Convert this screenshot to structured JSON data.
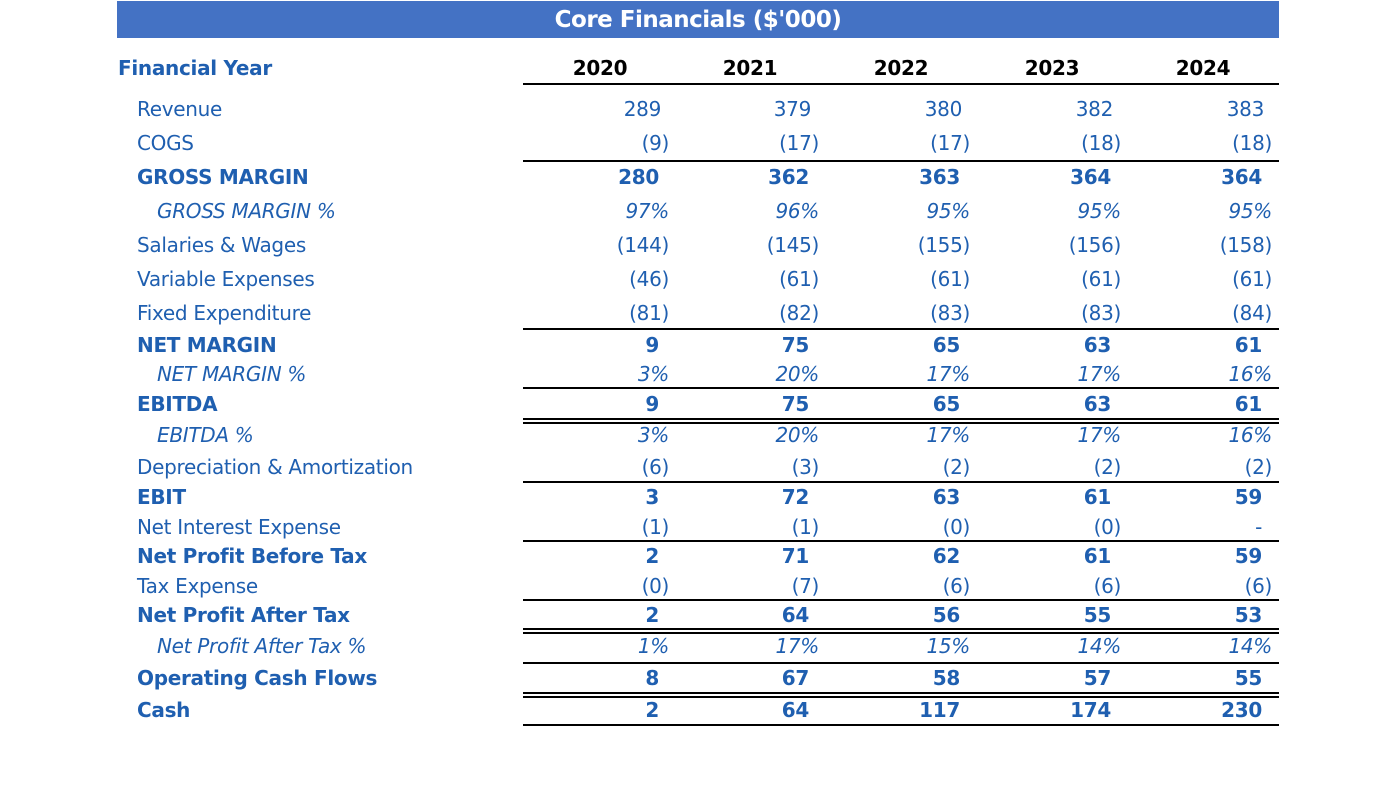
{
  "title": "Core Financials ($'000)",
  "header": {
    "label": "Financial Year",
    "years": [
      "2020",
      "2021",
      "2022",
      "2023",
      "2024"
    ]
  },
  "rows": [
    {
      "label": "Revenue",
      "values": [
        "289",
        "379",
        "380",
        "382",
        "383"
      ]
    },
    {
      "label": "COGS",
      "values": [
        "(9)",
        "(17)",
        "(17)",
        "(18)",
        "(18)"
      ]
    },
    {
      "label": "GROSS MARGIN",
      "values": [
        "280",
        "362",
        "363",
        "364",
        "364"
      ]
    },
    {
      "label": "GROSS MARGIN %",
      "values": [
        "97%",
        "96%",
        "95%",
        "95%",
        "95%"
      ]
    },
    {
      "label": "Salaries & Wages",
      "values": [
        "(144)",
        "(145)",
        "(155)",
        "(156)",
        "(158)"
      ]
    },
    {
      "label": "Variable Expenses",
      "values": [
        "(46)",
        "(61)",
        "(61)",
        "(61)",
        "(61)"
      ]
    },
    {
      "label": "Fixed Expenditure",
      "values": [
        "(81)",
        "(82)",
        "(83)",
        "(83)",
        "(84)"
      ]
    },
    {
      "label": "NET MARGIN",
      "values": [
        "9",
        "75",
        "65",
        "63",
        "61"
      ]
    },
    {
      "label": "NET MARGIN %",
      "values": [
        "3%",
        "20%",
        "17%",
        "17%",
        "16%"
      ]
    },
    {
      "label": "EBITDA",
      "values": [
        "9",
        "75",
        "65",
        "63",
        "61"
      ]
    },
    {
      "label": "EBITDA %",
      "values": [
        "3%",
        "20%",
        "17%",
        "17%",
        "16%"
      ]
    },
    {
      "label": "Depreciation & Amortization",
      "values": [
        "(6)",
        "(3)",
        "(2)",
        "(2)",
        "(2)"
      ]
    },
    {
      "label": "EBIT",
      "values": [
        "3",
        "72",
        "63",
        "61",
        "59"
      ]
    },
    {
      "label": "Net Interest Expense",
      "values": [
        "(1)",
        "(1)",
        "(0)",
        "(0)",
        "-"
      ]
    },
    {
      "label": "Net Profit Before Tax",
      "values": [
        "2",
        "71",
        "62",
        "61",
        "59"
      ]
    },
    {
      "label": "Tax Expense",
      "values": [
        "(0)",
        "(7)",
        "(6)",
        "(6)",
        "(6)"
      ]
    },
    {
      "label": "Net Profit After Tax",
      "values": [
        "2",
        "64",
        "56",
        "55",
        "53"
      ]
    },
    {
      "label": "Net Profit After Tax %",
      "values": [
        "1%",
        "17%",
        "15%",
        "14%",
        "14%"
      ]
    },
    {
      "label": "Operating Cash Flows",
      "values": [
        "8",
        "67",
        "58",
        "57",
        "55"
      ]
    },
    {
      "label": "Cash",
      "values": [
        "2",
        "64",
        "117",
        "174",
        "230"
      ]
    }
  ]
}
